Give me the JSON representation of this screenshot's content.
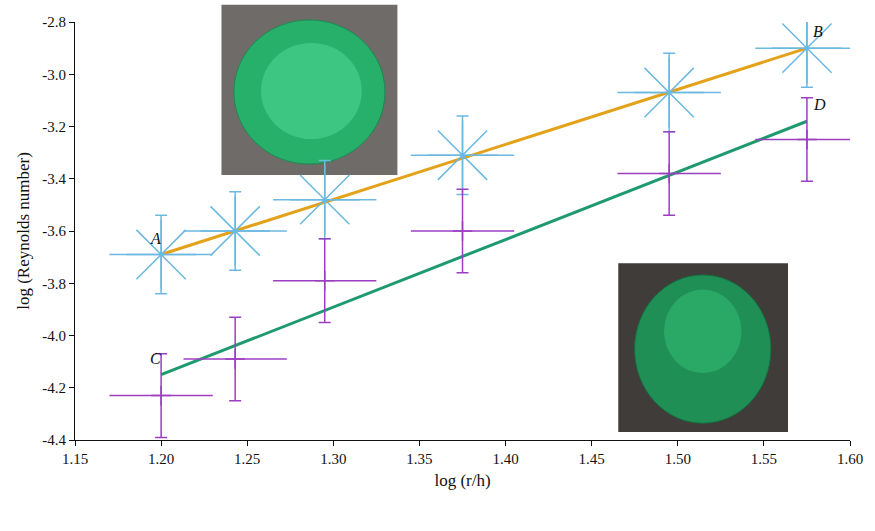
{
  "chart_data": {
    "type": "scatter",
    "x_label": "log (r/h)",
    "y_label": "log (Reynolds number)",
    "xlim": [
      1.15,
      1.6
    ],
    "ylim": [
      -4.4,
      -2.8
    ],
    "xticks": [
      {
        "value": 1.15,
        "label": "1.15"
      },
      {
        "value": 1.2,
        "label": "1.20"
      },
      1.25,
      {
        "value": 1.3,
        "label": "1.30"
      },
      1.35,
      {
        "value": 1.4,
        "label": "1.40"
      },
      1.45,
      {
        "value": 1.5,
        "label": "1.50"
      },
      1.55,
      {
        "value": 1.6,
        "label": "1.60"
      }
    ],
    "yticks": [
      -4.4,
      -4.2,
      {
        "value": -4.0,
        "label": "-4.0"
      },
      -3.8,
      -3.6,
      -3.4,
      -3.2,
      {
        "value": -3.0,
        "label": "-3.0"
      },
      -2.8
    ],
    "grid": false,
    "series": [
      {
        "color": "#6bb8e0",
        "marker": "asterisk",
        "x": [
          1.2,
          1.243,
          1.295,
          1.375,
          1.495,
          1.575
        ],
        "values": [
          -3.69,
          -3.6,
          -3.48,
          -3.31,
          -3.07,
          -2.9
        ],
        "x_error": [
          0.03,
          0.03,
          0.03,
          0.03,
          0.03,
          0.03
        ],
        "y_error": [
          0.15,
          0.15,
          0.15,
          0.15,
          0.15,
          0.15
        ]
      },
      {
        "color": "#9b3fc0",
        "marker": "cross",
        "x": [
          1.2,
          1.243,
          1.295,
          1.375,
          1.495,
          1.575
        ],
        "values": [
          -4.23,
          -4.09,
          -3.79,
          -3.6,
          -3.38,
          -3.25
        ],
        "x_error": [
          0.03,
          0.03,
          0.03,
          0.03,
          0.03,
          0.03
        ],
        "y_error": [
          0.16,
          0.16,
          0.16,
          0.16,
          0.16,
          0.16
        ]
      }
    ],
    "lines": [
      {
        "color": "#e3a21a",
        "x": [
          1.2,
          1.575
        ],
        "values": [
          -3.69,
          -2.9
        ],
        "labels": [
          "A",
          "B"
        ]
      },
      {
        "color": "#1f9a6e",
        "x": [
          1.2,
          1.575
        ],
        "values": [
          -4.15,
          -3.18
        ],
        "labels": [
          "C",
          "D"
        ]
      }
    ]
  }
}
